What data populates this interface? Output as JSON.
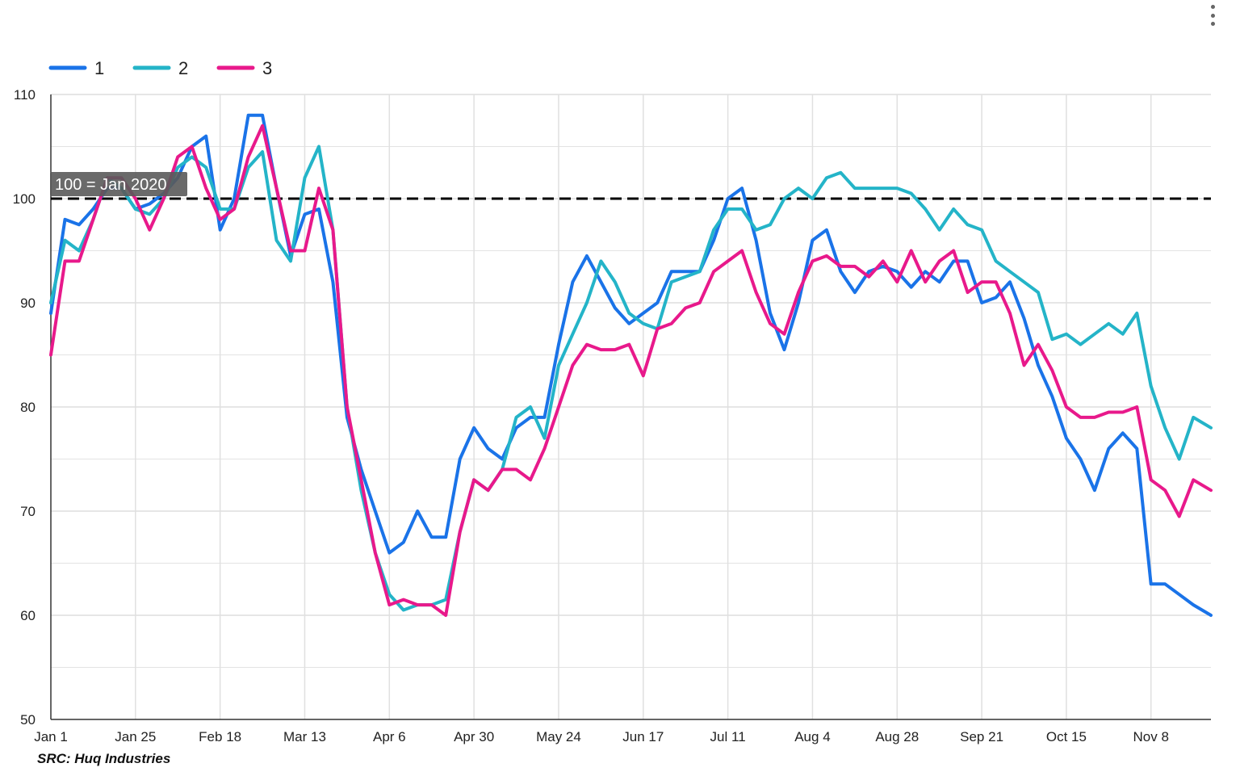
{
  "menu": {
    "icon": "more-vert-icon"
  },
  "source_note": "SRC: Huq Industries",
  "chart_data": {
    "type": "line",
    "title": "",
    "xlabel": "",
    "ylabel": "",
    "ylim": [
      50,
      110
    ],
    "yticks": [
      50,
      60,
      70,
      80,
      90,
      100,
      110
    ],
    "x_range": [
      "Jan 1",
      "Nov 25"
    ],
    "xtick_labels": [
      "Jan 1",
      "Jan 25",
      "Feb 18",
      "Mar 13",
      "Apr 6",
      "Apr 30",
      "May 24",
      "Jun 17",
      "Jul 11",
      "Aug 4",
      "Aug 28",
      "Sep 21",
      "Oct 15",
      "Nov 8"
    ],
    "grid": true,
    "legend": "top-left",
    "reference_line": {
      "value": 100,
      "label": "100 = Jan 2020",
      "style": "dashed",
      "color": "#000000"
    },
    "x": [
      "Jan 1",
      "Jan 5",
      "Jan 9",
      "Jan 13",
      "Jan 17",
      "Jan 21",
      "Jan 25",
      "Jan 29",
      "Feb 2",
      "Feb 6",
      "Feb 10",
      "Feb 14",
      "Feb 18",
      "Feb 22",
      "Feb 26",
      "Mar 1",
      "Mar 5",
      "Mar 9",
      "Mar 13",
      "Mar 17",
      "Mar 21",
      "Mar 25",
      "Mar 29",
      "Apr 2",
      "Apr 6",
      "Apr 10",
      "Apr 14",
      "Apr 18",
      "Apr 22",
      "Apr 26",
      "Apr 30",
      "May 4",
      "May 8",
      "May 12",
      "May 16",
      "May 20",
      "May 24",
      "May 28",
      "Jun 1",
      "Jun 5",
      "Jun 9",
      "Jun 13",
      "Jun 17",
      "Jun 21",
      "Jun 25",
      "Jun 29",
      "Jul 3",
      "Jul 7",
      "Jul 11",
      "Jul 15",
      "Jul 19",
      "Jul 23",
      "Jul 27",
      "Jul 31",
      "Aug 4",
      "Aug 8",
      "Aug 12",
      "Aug 16",
      "Aug 20",
      "Aug 24",
      "Aug 28",
      "Sep 1",
      "Sep 5",
      "Sep 9",
      "Sep 13",
      "Sep 17",
      "Sep 21",
      "Sep 25",
      "Sep 29",
      "Oct 3",
      "Oct 7",
      "Oct 11",
      "Oct 15",
      "Oct 19",
      "Oct 23",
      "Oct 27",
      "Oct 31",
      "Nov 4",
      "Nov 8",
      "Nov 12",
      "Nov 16",
      "Nov 20",
      "Nov 25"
    ],
    "series": [
      {
        "name": "1",
        "color": "#1a73e8",
        "values": [
          89,
          98,
          97.5,
          99,
          101,
          101,
          99,
          99.5,
          100.5,
          102,
          105,
          106,
          97,
          100,
          108,
          108,
          101,
          94.5,
          98.5,
          99,
          92,
          79,
          74,
          70,
          66,
          67,
          70,
          67.5,
          67.5,
          75,
          78,
          76,
          75,
          78,
          79,
          79,
          86,
          92,
          94.5,
          92,
          89.5,
          88,
          89,
          90,
          93,
          93,
          93,
          96,
          100,
          101,
          96,
          89,
          85.5,
          90,
          96,
          97,
          93,
          91,
          93,
          93.5,
          93,
          91.5,
          93,
          92,
          94,
          94,
          90,
          90.5,
          92,
          88.5,
          84,
          81,
          77,
          75,
          72,
          76,
          77.5,
          76,
          63,
          63,
          62,
          61,
          60
        ]
      },
      {
        "name": "2",
        "color": "#24b4c8",
        "values": [
          90,
          96,
          95,
          98,
          102,
          101,
          99,
          98.5,
          100,
          103,
          104,
          103,
          99,
          99,
          103,
          104.5,
          96,
          94,
          102,
          105,
          97,
          80,
          72,
          66,
          62,
          60.5,
          61,
          61,
          61.5,
          68,
          73,
          72,
          74,
          79,
          80,
          77,
          84,
          87,
          90,
          94,
          92,
          89,
          88,
          87.5,
          92,
          92.5,
          93,
          97,
          99,
          99,
          97,
          97.5,
          100,
          101,
          100,
          102,
          102.5,
          101,
          101,
          101,
          101,
          100.5,
          99,
          97,
          99,
          97.5,
          97,
          94,
          93,
          92,
          91,
          86.5,
          87,
          86,
          87,
          88,
          87,
          89,
          82,
          78,
          75,
          79,
          78
        ]
      },
      {
        "name": "3",
        "color": "#e8198b",
        "values": [
          85,
          94,
          94,
          98,
          102,
          102,
          100,
          97,
          100,
          104,
          105,
          101,
          98,
          99,
          104,
          107,
          101,
          95,
          95,
          101,
          97,
          80,
          73,
          66,
          61,
          61.5,
          61,
          61,
          60,
          68,
          73,
          72,
          74,
          74,
          73,
          76,
          80,
          84,
          86,
          85.5,
          85.5,
          86,
          83,
          87.5,
          88,
          89.5,
          90,
          93,
          94,
          95,
          91,
          88,
          87,
          91,
          94,
          94.5,
          93.5,
          93.5,
          92.5,
          94,
          92,
          95,
          92,
          94,
          95,
          91,
          92,
          92,
          89,
          84,
          86,
          83.5,
          80,
          79,
          79,
          79.5,
          79.5,
          80,
          73,
          72,
          69.5,
          73,
          72
        ]
      }
    ]
  }
}
